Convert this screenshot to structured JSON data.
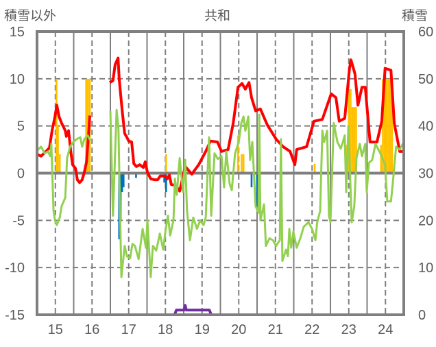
{
  "chart_data": {
    "type": "bar+line",
    "title": "共和",
    "ylabel_left": "積雪以外",
    "ylabel_right": "積雪",
    "ylim_left": [
      -15,
      15
    ],
    "ylim_right": [
      0,
      60
    ],
    "xlim": [
      14.5,
      24.5
    ],
    "left_ticks": [
      "15",
      "10",
      "5",
      "0",
      "-5",
      "-10",
      "-15"
    ],
    "left_tick_values": [
      15,
      10,
      5,
      0,
      -5,
      -10,
      -15
    ],
    "right_ticks": [
      "60",
      "50",
      "40",
      "30",
      "20",
      "10",
      "0"
    ],
    "right_tick_values": [
      60,
      50,
      40,
      30,
      20,
      10,
      0
    ],
    "x_ticks": [
      "15",
      "16",
      "17",
      "18",
      "19",
      "20",
      "21",
      "22",
      "23",
      "24"
    ],
    "x_tick_values": [
      15,
      16,
      17,
      18,
      19,
      20,
      21,
      22,
      23,
      24
    ],
    "grid": true,
    "series": [
      {
        "name": "red",
        "axis": "left",
        "color": "#ff0000",
        "segments": [
          [
            [
              14.5,
              2.0
            ],
            [
              14.61,
              1.8
            ],
            [
              14.72,
              2.2
            ],
            [
              14.84,
              2.7
            ],
            [
              14.91,
              4.5
            ],
            [
              14.99,
              6.0
            ],
            [
              15.04,
              7.2
            ],
            [
              15.1,
              6.0
            ],
            [
              15.17,
              5.3
            ],
            [
              15.27,
              4.5
            ],
            [
              15.3,
              3.9
            ],
            [
              15.36,
              4.5
            ],
            [
              15.42,
              2.3
            ],
            [
              15.47,
              0.9
            ],
            [
              15.55,
              0.5
            ],
            [
              15.6,
              -0.7
            ],
            [
              15.66,
              -1.0
            ],
            [
              15.73,
              -0.7
            ],
            [
              15.79,
              0.1
            ],
            [
              15.85,
              1.2
            ],
            [
              15.9,
              3.8
            ],
            [
              15.94,
              6.1
            ]
          ],
          [
            [
              16.48,
              9.6
            ],
            [
              16.57,
              9.8
            ],
            [
              16.63,
              11.5
            ],
            [
              16.71,
              12.2
            ],
            [
              16.74,
              10.0
            ],
            [
              16.82,
              6.7
            ],
            [
              16.89,
              4.2
            ],
            [
              16.95,
              3.8
            ],
            [
              17.0,
              3.4
            ],
            [
              17.08,
              3.3
            ],
            [
              17.14,
              1.0
            ],
            [
              17.21,
              0.7
            ],
            [
              17.3,
              0.9
            ],
            [
              17.4,
              0.6
            ],
            [
              17.45,
              1.2
            ],
            [
              17.51,
              0.1
            ],
            [
              17.6,
              -0.6
            ],
            [
              17.71,
              -0.7
            ],
            [
              17.79,
              -0.7
            ],
            [
              17.86,
              -0.3
            ],
            [
              17.98,
              -0.3
            ],
            [
              18.05,
              -0.6
            ],
            [
              18.11,
              -0.2
            ],
            [
              18.16,
              -1.2
            ],
            [
              18.28,
              -1.3
            ],
            [
              18.39,
              -1.9
            ],
            [
              18.54,
              0.7
            ],
            [
              18.72,
              -0.1
            ],
            [
              18.91,
              0.9
            ],
            [
              19.1,
              2.3
            ],
            [
              19.23,
              3.4
            ],
            [
              19.42,
              3.3
            ],
            [
              19.53,
              2.3
            ],
            [
              19.71,
              2.5
            ],
            [
              19.85,
              5.3
            ],
            [
              19.98,
              9.1
            ],
            [
              20.09,
              9.5
            ],
            [
              20.18,
              8.9
            ],
            [
              20.28,
              9.6
            ],
            [
              20.35,
              8.0
            ],
            [
              20.46,
              6.6
            ],
            [
              20.59,
              6.8
            ],
            [
              20.78,
              5.1
            ],
            [
              21.02,
              3.6
            ],
            [
              21.21,
              2.8
            ],
            [
              21.4,
              2.3
            ],
            [
              21.53,
              0.9
            ],
            [
              21.58,
              2.5
            ],
            [
              21.85,
              2.8
            ],
            [
              22.05,
              5.5
            ],
            [
              22.28,
              5.7
            ],
            [
              22.52,
              8.4
            ],
            [
              22.65,
              8.0
            ],
            [
              22.74,
              5.5
            ],
            [
              22.89,
              5.8
            ],
            [
              23.02,
              11.1
            ],
            [
              23.06,
              12.0
            ],
            [
              23.17,
              10.5
            ],
            [
              23.25,
              7.2
            ],
            [
              23.36,
              9.1
            ],
            [
              23.45,
              9.1
            ],
            [
              23.58,
              3.3
            ],
            [
              23.77,
              3.3
            ],
            [
              23.9,
              5.5
            ],
            [
              23.99,
              11.1
            ],
            [
              24.15,
              10.9
            ],
            [
              24.24,
              5.3
            ],
            [
              24.39,
              2.3
            ],
            [
              24.5,
              2.3
            ]
          ]
        ]
      },
      {
        "name": "green",
        "axis": "left",
        "color": "#92d050",
        "segments": [
          [
            [
              14.48,
              2.3
            ],
            [
              14.61,
              2.8
            ],
            [
              14.71,
              2.1
            ],
            [
              14.8,
              2.3
            ],
            [
              14.86,
              1.8
            ],
            [
              14.89,
              3.1
            ],
            [
              14.95,
              -4.0
            ],
            [
              14.99,
              -5.0
            ],
            [
              15.04,
              -5.5
            ],
            [
              15.12,
              -4.7
            ],
            [
              15.17,
              -3.5
            ],
            [
              15.27,
              -2.6
            ],
            [
              15.32,
              1.6
            ],
            [
              15.4,
              2.8
            ],
            [
              15.49,
              3.3
            ],
            [
              15.58,
              3.6
            ],
            [
              15.68,
              3.8
            ],
            [
              15.73,
              2.8
            ],
            [
              15.79,
              3.6
            ],
            [
              15.88,
              4.0
            ],
            [
              15.96,
              3.4
            ]
          ],
          [
            [
              16.5,
              6.6
            ],
            [
              16.57,
              -4.5
            ],
            [
              16.67,
              6.7
            ],
            [
              16.72,
              4.7
            ],
            [
              16.8,
              -11.0
            ],
            [
              16.89,
              -7.7
            ],
            [
              16.95,
              -8.8
            ],
            [
              17.04,
              -9.0
            ],
            [
              17.1,
              -7.5
            ],
            [
              17.17,
              -7.7
            ],
            [
              17.27,
              -9.1
            ],
            [
              17.38,
              -5.9
            ],
            [
              17.47,
              -7.9
            ],
            [
              17.51,
              -5.0
            ],
            [
              17.6,
              -11.0
            ],
            [
              17.66,
              -7.7
            ],
            [
              17.75,
              -8.2
            ],
            [
              17.85,
              -6.4
            ],
            [
              17.94,
              -8.1
            ],
            [
              18.01,
              -5.9
            ],
            [
              18.07,
              -4.5
            ],
            [
              18.13,
              -6.6
            ],
            [
              18.22,
              -5.0
            ],
            [
              18.26,
              -0.6
            ],
            [
              18.31,
              -2.3
            ],
            [
              18.39,
              1.6
            ],
            [
              18.48,
              -2.0
            ],
            [
              18.54,
              1.4
            ],
            [
              18.59,
              -4.0
            ],
            [
              18.67,
              -7.1
            ],
            [
              18.76,
              -4.7
            ],
            [
              18.86,
              -5.9
            ],
            [
              18.95,
              -5.0
            ],
            [
              19.04,
              -5.5
            ],
            [
              19.1,
              -4.7
            ],
            [
              19.19,
              3.8
            ],
            [
              19.25,
              -4.5
            ],
            [
              19.34,
              2.1
            ],
            [
              19.43,
              1.5
            ],
            [
              19.53,
              1.8
            ],
            [
              19.6,
              -1.5
            ],
            [
              19.66,
              2.3
            ],
            [
              19.75,
              -1.1
            ],
            [
              19.81,
              -1.8
            ],
            [
              19.9,
              2.1
            ],
            [
              20.0,
              3.3
            ],
            [
              20.07,
              5.3
            ],
            [
              20.13,
              6.0
            ],
            [
              20.18,
              4.5
            ],
            [
              20.26,
              6.0
            ],
            [
              20.31,
              1.4
            ],
            [
              20.37,
              3.3
            ],
            [
              20.46,
              -3.5
            ],
            [
              20.54,
              -4.2
            ],
            [
              20.56,
              6.2
            ],
            [
              20.59,
              -5.0
            ],
            [
              20.69,
              -3.3
            ],
            [
              20.74,
              -7.7
            ],
            [
              20.84,
              -6.9
            ],
            [
              20.93,
              -7.1
            ],
            [
              21.02,
              -7.7
            ],
            [
              21.12,
              -7.1
            ],
            [
              21.15,
              3.6
            ],
            [
              21.19,
              -9.3
            ],
            [
              21.29,
              -8.1
            ],
            [
              21.34,
              -8.8
            ],
            [
              21.38,
              -5.9
            ],
            [
              21.43,
              -7.9
            ],
            [
              21.49,
              -6.2
            ],
            [
              21.58,
              -7.9
            ],
            [
              21.68,
              -6.9
            ],
            [
              21.77,
              -5.7
            ],
            [
              21.9,
              -5.2
            ],
            [
              22.0,
              -5.9
            ],
            [
              22.09,
              -7.1
            ],
            [
              22.14,
              -5.2
            ],
            [
              22.22,
              -4.0
            ],
            [
              22.28,
              4.5
            ],
            [
              22.33,
              3.3
            ],
            [
              22.41,
              4.5
            ],
            [
              22.46,
              -4.5
            ],
            [
              22.5,
              -5.2
            ],
            [
              22.59,
              5.3
            ],
            [
              22.69,
              3.3
            ],
            [
              22.78,
              2.6
            ],
            [
              22.84,
              3.3
            ],
            [
              22.89,
              4.0
            ],
            [
              22.93,
              -2.0
            ],
            [
              22.99,
              5.0
            ],
            [
              23.08,
              -5.2
            ],
            [
              23.15,
              -3.5
            ],
            [
              23.21,
              1.6
            ],
            [
              23.3,
              3.1
            ],
            [
              23.36,
              1.8
            ],
            [
              23.45,
              3.1
            ],
            [
              23.49,
              -2.0
            ],
            [
              23.55,
              1.1
            ],
            [
              23.64,
              1.4
            ],
            [
              23.73,
              3.1
            ],
            [
              23.86,
              2.1
            ],
            [
              23.99,
              0.9
            ],
            [
              24.05,
              -3.0
            ],
            [
              24.15,
              -3.0
            ],
            [
              24.2,
              -1.1
            ],
            [
              24.29,
              2.8
            ],
            [
              24.39,
              2.5
            ],
            [
              24.5,
              3.3
            ]
          ]
        ]
      },
      {
        "name": "purple",
        "axis": "right",
        "color": "#7030a0",
        "segments": [
          [
            [
              14.5,
              0
            ],
            [
              16.0,
              0
            ]
          ],
          [
            [
              16.5,
              0
            ],
            [
              18.25,
              0
            ],
            [
              18.3,
              1
            ],
            [
              18.51,
              1
            ],
            [
              18.54,
              2
            ],
            [
              18.57,
              1
            ],
            [
              19.2,
              1
            ],
            [
              19.25,
              0
            ],
            [
              24.5,
              0
            ]
          ]
        ]
      }
    ],
    "bars_positive": {
      "axis": "left",
      "color": "#ffc000",
      "points": [
        [
          15.03,
          10
        ],
        [
          15.07,
          5
        ],
        [
          15.12,
          2
        ],
        [
          15.84,
          10
        ],
        [
          15.89,
          10
        ],
        [
          15.94,
          10
        ],
        [
          18.02,
          2
        ],
        [
          19.98,
          4
        ],
        [
          20.08,
          2
        ],
        [
          20.13,
          2
        ],
        [
          22.07,
          1
        ],
        [
          22.95,
          3
        ],
        [
          23.0,
          10
        ],
        [
          23.05,
          8.9
        ],
        [
          23.1,
          7
        ],
        [
          23.15,
          7
        ],
        [
          23.2,
          7
        ],
        [
          23.88,
          3
        ],
        [
          23.93,
          10
        ],
        [
          23.98,
          10
        ],
        [
          24.03,
          10
        ],
        [
          24.08,
          10
        ],
        [
          24.13,
          10
        ],
        [
          24.18,
          10
        ]
      ]
    },
    "bars_negative": {
      "axis": "left",
      "color": "#0070c0",
      "points": [
        [
          16.74,
          -7
        ],
        [
          16.78,
          -5
        ],
        [
          16.82,
          -2
        ],
        [
          16.86,
          -1.5
        ],
        [
          17.2,
          -0.5
        ],
        [
          17.97,
          -1
        ],
        [
          18.02,
          -2
        ],
        [
          18.12,
          -0.6
        ],
        [
          20.35,
          -1.5
        ],
        [
          20.5,
          -3.5
        ]
      ]
    }
  }
}
